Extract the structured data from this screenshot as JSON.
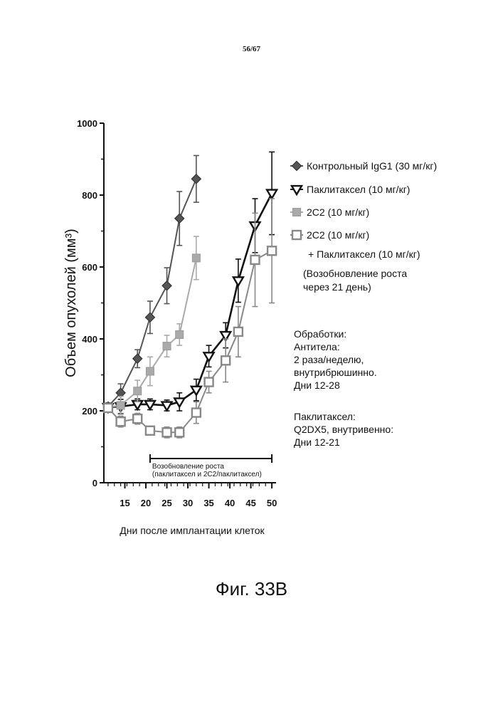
{
  "page_number": "56/67",
  "figure_caption": "Фиг. 33B",
  "notes": {
    "treatments": [
      "Обработки:",
      "Антитела:",
      "2 раза/неделю,",
      "внутрибрюшинно.",
      "Дни  12-28"
    ],
    "paclitaxel": [
      "Паклитаксел:",
      "Q2DX5, внутривенно:",
      "Дни  12-21"
    ]
  },
  "chart_data": {
    "type": "line",
    "ylabel": "Объем опухолей (мм³)",
    "xlabel": "Дни после имплантации клеток",
    "ylim": [
      0,
      1000
    ],
    "yticks": [
      0,
      200,
      400,
      600,
      800,
      1000
    ],
    "xlim": [
      10,
      51
    ],
    "xticks": [
      15,
      20,
      25,
      30,
      35,
      40,
      45,
      50
    ],
    "legend": {
      "placement": "right",
      "entries": [
        {
          "label": "Контрольный IgG1 (30 мг/кг)"
        },
        {
          "label": "Паклитаксел (10 мг/кг)"
        },
        {
          "label": "2C2 (10 мг/кг)"
        },
        {
          "label": "2C2 (10 мг/кг)"
        },
        {
          "label": "+ Паклитаксел (10 мг/кг)"
        },
        {
          "label": "(Возобновление роста"
        },
        {
          "label": "через 21 день)"
        }
      ]
    },
    "annotation": {
      "x_start": 21,
      "x_end": 50,
      "lines": [
        "Возобновление роста",
        "(паклитаксел и 2C2/паклитаксел)"
      ]
    },
    "series": [
      {
        "marker": "diamond",
        "color": "#555555",
        "points": [
          {
            "x": 11,
            "y": 212,
            "err": 10
          },
          {
            "x": 14,
            "y": 250,
            "err": 25
          },
          {
            "x": 18,
            "y": 345,
            "err": 25
          },
          {
            "x": 21,
            "y": 460,
            "err": 45
          },
          {
            "x": 25,
            "y": 548,
            "err": 50
          },
          {
            "x": 28,
            "y": 735,
            "err": 75
          },
          {
            "x": 32,
            "y": 845,
            "err": 65
          }
        ]
      },
      {
        "marker": "triangle-down-open",
        "color": "#111111",
        "points": [
          {
            "x": 11,
            "y": 210,
            "err": 10
          },
          {
            "x": 14,
            "y": 212,
            "err": 20
          },
          {
            "x": 18,
            "y": 218,
            "err": 15
          },
          {
            "x": 21,
            "y": 218,
            "err": 15
          },
          {
            "x": 25,
            "y": 215,
            "err": 15
          },
          {
            "x": 28,
            "y": 225,
            "err": 25
          },
          {
            "x": 32,
            "y": 258,
            "err": 30
          },
          {
            "x": 35,
            "y": 352,
            "err": 30
          },
          {
            "x": 39,
            "y": 410,
            "err": 35
          },
          {
            "x": 42,
            "y": 562,
            "err": 60
          },
          {
            "x": 46,
            "y": 715,
            "err": 75
          },
          {
            "x": 50,
            "y": 805,
            "err": 115
          }
        ]
      },
      {
        "marker": "square-light",
        "color": "#aaaaaa",
        "points": [
          {
            "x": 11,
            "y": 210,
            "err": 10
          },
          {
            "x": 14,
            "y": 215,
            "err": 25
          },
          {
            "x": 18,
            "y": 255,
            "err": 30
          },
          {
            "x": 21,
            "y": 310,
            "err": 40
          },
          {
            "x": 25,
            "y": 380,
            "err": 30
          },
          {
            "x": 28,
            "y": 412,
            "err": 30
          },
          {
            "x": 32,
            "y": 625,
            "err": 60
          }
        ]
      },
      {
        "marker": "square-open",
        "color": "#888888",
        "points": [
          {
            "x": 11,
            "y": 208,
            "err": 10
          },
          {
            "x": 14,
            "y": 170,
            "err": 15
          },
          {
            "x": 18,
            "y": 178,
            "err": 15
          },
          {
            "x": 21,
            "y": 145,
            "err": 12
          },
          {
            "x": 25,
            "y": 140,
            "err": 15
          },
          {
            "x": 28,
            "y": 140,
            "err": 15
          },
          {
            "x": 32,
            "y": 195,
            "err": 30
          },
          {
            "x": 35,
            "y": 280,
            "err": 30
          },
          {
            "x": 39,
            "y": 340,
            "err": 60
          },
          {
            "x": 42,
            "y": 420,
            "err": 70
          },
          {
            "x": 46,
            "y": 620,
            "err": 130
          },
          {
            "x": 50,
            "y": 645,
            "err": 145
          }
        ]
      }
    ]
  }
}
